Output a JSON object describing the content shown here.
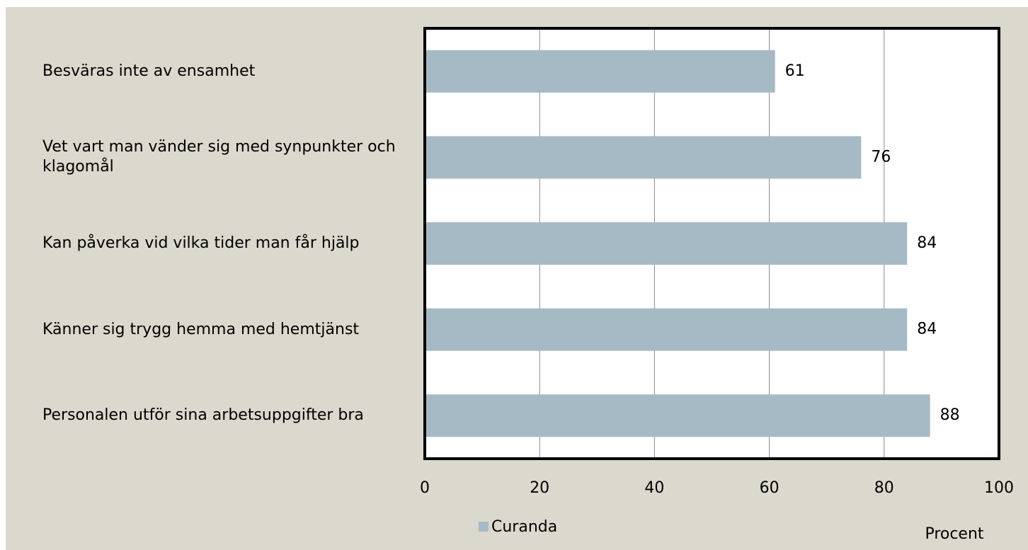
{
  "chart_data": {
    "type": "bar",
    "orientation": "horizontal",
    "categories": [
      "Besväras inte av ensamhet",
      "Vet vart man vänder sig med synpunkter och klagomål",
      "Kan påverka vid vilka tider man får hjälp",
      "Känner sig trygg hemma med hemtjänst",
      "Personalen utför sina arbetsuppgifter bra"
    ],
    "series": [
      {
        "name": "Curanda",
        "color": "#a6bac5",
        "values": [
          61,
          76,
          84,
          84,
          88
        ]
      }
    ],
    "xlim": [
      0,
      100
    ],
    "xticks": [
      0,
      20,
      40,
      60,
      80,
      100
    ],
    "xlabel": "Procent",
    "grid": true,
    "legend": "bottom"
  }
}
